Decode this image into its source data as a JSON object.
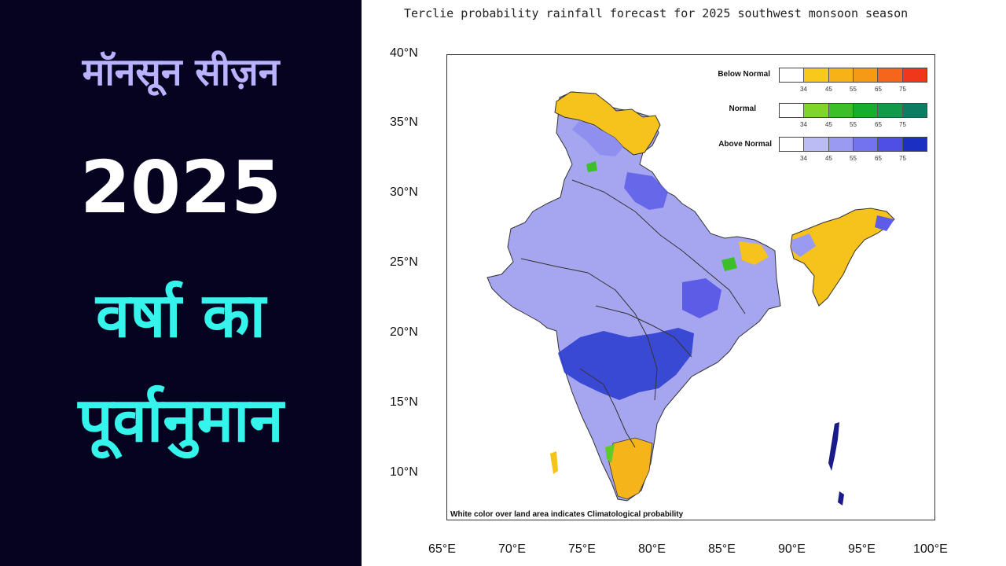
{
  "headline": {
    "line1": "मॉनसून सीज़न",
    "line2": "2025",
    "line3": "वर्षा का",
    "line4": "पूर्वानुमान"
  },
  "map": {
    "title": "Terclie probability rainfall forecast for 2025 southwest monsoon  season",
    "lat_ticks": [
      "40°N",
      "35°N",
      "30°N",
      "25°N",
      "20°N",
      "15°N",
      "10°N"
    ],
    "lon_ticks": [
      "65°E",
      "70°E",
      "75°E",
      "80°E",
      "85°E",
      "90°E",
      "95°E",
      "100°E"
    ],
    "note": "White color over land area indicates Climatological probability",
    "legend": {
      "rows": [
        {
          "label": "Below Normal",
          "colors": [
            "#ffffff",
            "#f8c91a",
            "#f6b217",
            "#f59a14",
            "#f5661b",
            "#f0361b"
          ]
        },
        {
          "label": "Normal",
          "colors": [
            "#ffffff",
            "#7fd52a",
            "#3dbf2a",
            "#17ad2f",
            "#109a4a",
            "#0c7d63"
          ]
        },
        {
          "label": "Above Normal",
          "colors": [
            "#ffffff",
            "#bcbcf5",
            "#9a9af2",
            "#7373ef",
            "#4f4fe6",
            "#1b2fc2"
          ]
        }
      ],
      "ticks": [
        "34",
        "45",
        "55",
        "65",
        "75"
      ]
    }
  }
}
